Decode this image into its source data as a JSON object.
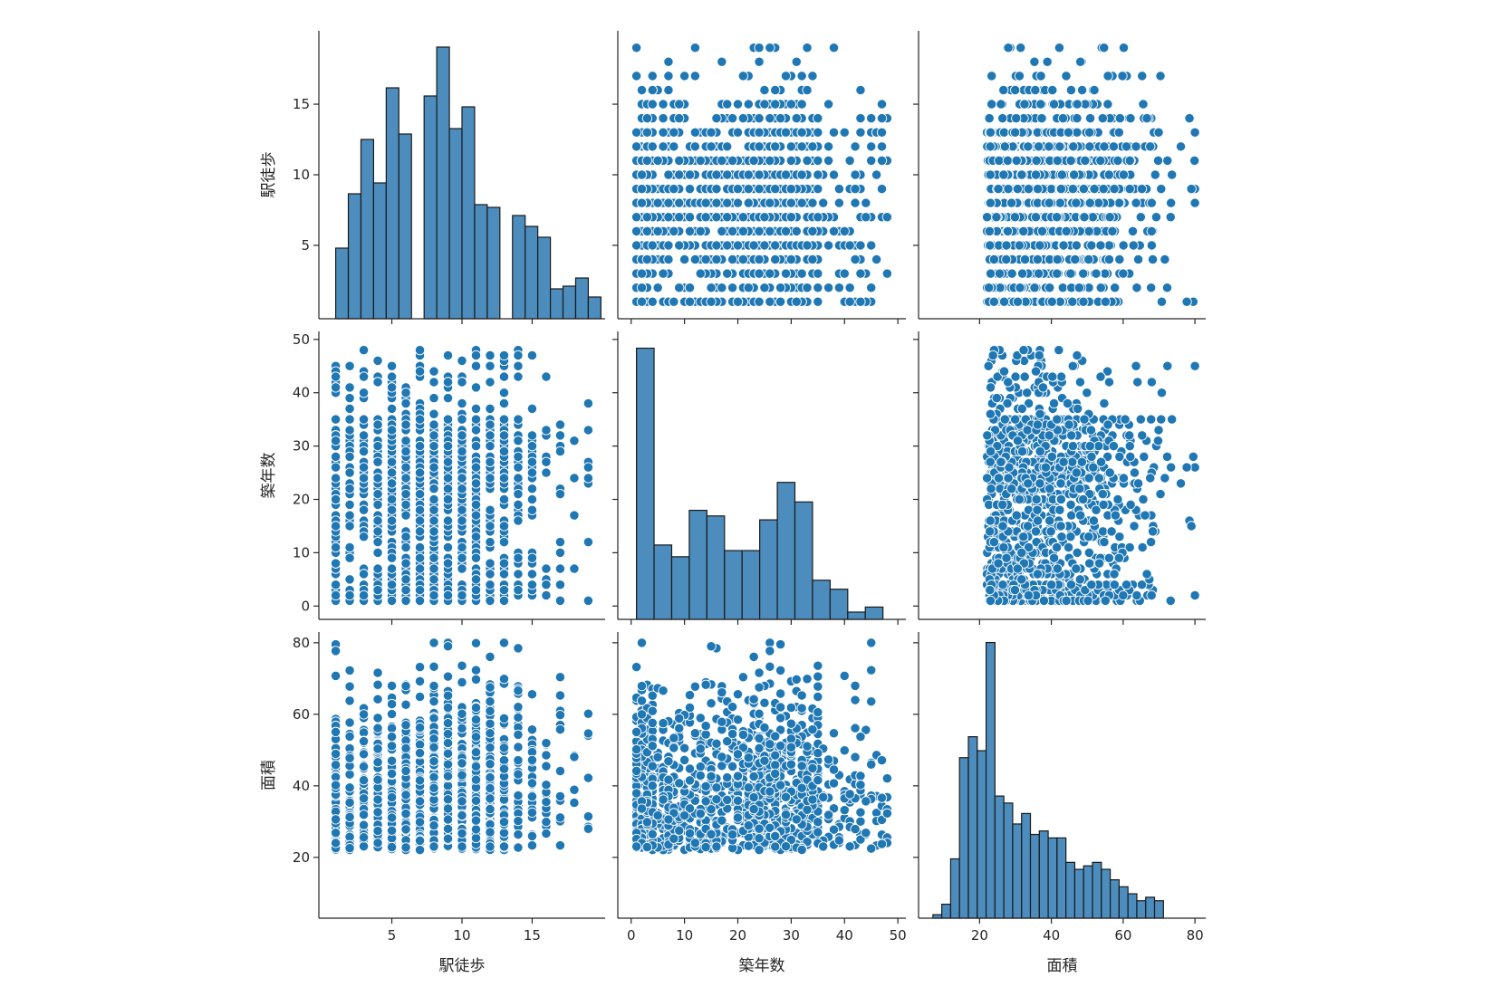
{
  "chart_data": {
    "type": "pairplot",
    "variables": [
      "駅徒歩",
      "築年数",
      "面積"
    ],
    "colors": {
      "point": "#1f77b4",
      "point_edge": "#ffffff",
      "bar": "#4c8dbd",
      "bar_edge": "#1a1a1a",
      "axis": "#262626"
    },
    "axes": {
      "駅徒歩": {
        "range": [
          -0.2,
          20.2
        ],
        "ticks": [
          5,
          10,
          15
        ],
        "tick_labels": [
          "5",
          "10",
          "15"
        ]
      },
      "築年数": {
        "range": [
          -2.5,
          51.5
        ],
        "ticks": [
          0,
          10,
          20,
          30,
          40,
          50
        ],
        "tick_labels": [
          "0",
          "10",
          "20",
          "30",
          "40",
          "50"
        ]
      },
      "面積": {
        "range": [
          3,
          83
        ],
        "ticks": [
          20,
          40,
          60,
          80
        ],
        "tick_labels": [
          "20",
          "40",
          "60",
          "80"
        ]
      }
    },
    "y_axes": {
      "駅徒歩": {
        "range": [
          -0.2,
          20.2
        ],
        "ticks": [
          5,
          10,
          15
        ],
        "tick_labels": [
          "5",
          "10",
          "15"
        ]
      },
      "築年数": {
        "range": [
          -2.5,
          51.5
        ],
        "ticks": [
          0,
          10,
          20,
          30,
          40,
          50
        ],
        "tick_labels": [
          "0",
          "10",
          "20",
          "30",
          "40",
          "50"
        ]
      },
      "面積": {
        "range": [
          3,
          83
        ],
        "ticks": [
          20,
          40,
          60,
          80
        ],
        "tick_labels": [
          "20",
          "40",
          "60",
          "80"
        ]
      }
    },
    "histograms": {
      "駅徒歩": {
        "bins_start": 1,
        "bin_width": 0.9,
        "counts": [
          2.6,
          4.6,
          6.6,
          5.0,
          8.5,
          6.8,
          0,
          8.2,
          10.0,
          7.0,
          7.8,
          4.2,
          4.1,
          0,
          3.8,
          3.4,
          3.0,
          1.1,
          1.2,
          1.5,
          0.8
        ],
        "max_count_scale": 10.6
      },
      "築年数": {
        "bins_start": 1,
        "bin_width": 3.3,
        "counts": [
          48.5,
          13.3,
          11.2,
          19.5,
          18.5,
          12.3,
          12.3,
          17.8,
          24.5,
          21.0,
          7.0,
          5.4,
          1.3,
          2.2
        ],
        "max_count_scale": 51.5
      },
      "面積": {
        "bins_start": 7,
        "bin_width": 2.47,
        "counts": [
          1,
          4,
          17,
          46,
          52,
          48,
          79,
          35,
          33,
          27,
          30,
          24,
          25,
          23,
          23,
          16,
          14,
          15,
          16,
          14,
          11,
          9,
          7,
          5,
          6,
          5
        ],
        "max_count_scale": 82
      }
    },
    "scatter_summary": {
      "n_points_approx": 1200,
      "駅徒歩_values": "integers 1–19",
      "築年数_values": "integers 1–49",
      "面積_range": [
        7,
        80
      ]
    }
  }
}
